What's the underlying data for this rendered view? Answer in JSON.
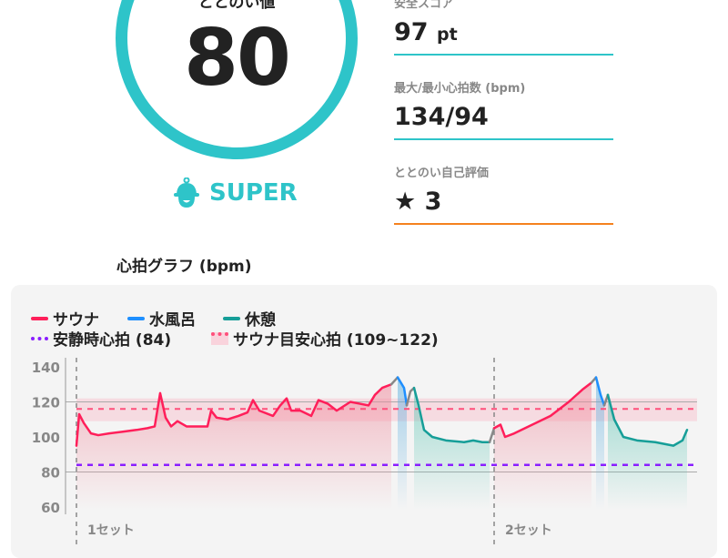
{
  "summary": {
    "score_label": "ととのい値",
    "score": "80",
    "rank": "SUPER",
    "rank_icon": "sauna-hat-icon",
    "accent_color": "#2ec4c9"
  },
  "stats": [
    {
      "label": "安全スコア",
      "value": "97",
      "unit": "pt",
      "line_color": "#2ec4c9"
    },
    {
      "label": "最大/最小心拍数 (bpm)",
      "value": "134/94",
      "unit": "",
      "line_color": "#2ec4c9"
    },
    {
      "label": "ととのい自己評価",
      "value": "3",
      "icon": "star-icon",
      "line_color": "#f5821f"
    }
  ],
  "graph": {
    "title": "心拍グラフ (bpm)"
  },
  "chart_data": {
    "type": "line",
    "title": "心拍グラフ (bpm)",
    "ylim": [
      60,
      140
    ],
    "yticks": [
      "140",
      "120",
      "100",
      "80",
      "60"
    ],
    "grid": true,
    "legend_position": "top-left",
    "legend": [
      {
        "label": "サウナ",
        "color": "#ff1f5a",
        "style": "solid"
      },
      {
        "label": "水風呂",
        "color": "#1e8fff",
        "style": "solid"
      },
      {
        "label": "休憩",
        "color": "#169e98",
        "style": "solid"
      },
      {
        "label": "安静時心拍 (84)",
        "color": "#8a1fff",
        "style": "dotted"
      },
      {
        "label": "サウナ目安心拍 (109~122)",
        "color": "#ff4f7b",
        "style": "dotted-band"
      }
    ],
    "resting_hr": 84,
    "target_band": [
      109,
      122
    ],
    "target_line": 116,
    "set_markers": [
      {
        "t": 0,
        "label": "1セット"
      },
      {
        "t": 459,
        "label": "2セット"
      }
    ],
    "segments": [
      {
        "phase": "sauna",
        "points": [
          [
            0,
            95
          ],
          [
            3,
            113
          ],
          [
            8,
            108
          ],
          [
            16,
            102
          ],
          [
            24,
            101
          ],
          [
            36,
            102
          ],
          [
            51,
            103
          ],
          [
            66,
            104
          ],
          [
            78,
            105
          ],
          [
            86,
            106
          ],
          [
            92,
            125
          ],
          [
            98,
            111
          ],
          [
            104,
            106
          ],
          [
            111,
            109
          ],
          [
            121,
            106
          ],
          [
            136,
            106
          ],
          [
            144,
            106
          ],
          [
            148,
            115
          ],
          [
            154,
            111
          ],
          [
            166,
            110
          ],
          [
            178,
            112
          ],
          [
            188,
            114
          ],
          [
            194,
            121
          ],
          [
            201,
            115
          ],
          [
            216,
            112
          ],
          [
            224,
            118
          ],
          [
            231,
            122
          ],
          [
            236,
            115
          ],
          [
            246,
            115
          ],
          [
            258,
            112
          ],
          [
            266,
            121
          ],
          [
            276,
            119
          ],
          [
            286,
            115
          ],
          [
            301,
            120
          ],
          [
            311,
            119
          ],
          [
            321,
            118
          ],
          [
            328,
            124
          ],
          [
            336,
            128
          ],
          [
            346,
            130
          ]
        ]
      },
      {
        "phase": "transition",
        "points": [
          [
            346,
            130
          ],
          [
            353,
            134
          ]
        ]
      },
      {
        "phase": "water",
        "points": [
          [
            353,
            134
          ],
          [
            360,
            128
          ],
          [
            363,
            118
          ]
        ]
      },
      {
        "phase": "transition",
        "points": [
          [
            363,
            118
          ],
          [
            367,
            126
          ],
          [
            371,
            128
          ]
        ]
      },
      {
        "phase": "rest",
        "points": [
          [
            371,
            128
          ],
          [
            376,
            118
          ],
          [
            382,
            104
          ],
          [
            391,
            100
          ],
          [
            406,
            98
          ],
          [
            426,
            97
          ],
          [
            436,
            98
          ],
          [
            446,
            97
          ],
          [
            454,
            97
          ]
        ]
      },
      {
        "phase": "transition",
        "points": [
          [
            454,
            97
          ],
          [
            459,
            105
          ]
        ]
      },
      {
        "phase": "sauna",
        "points": [
          [
            459,
            105
          ],
          [
            466,
            107
          ],
          [
            471,
            100
          ],
          [
            481,
            102
          ],
          [
            501,
            107
          ],
          [
            521,
            112
          ],
          [
            541,
            120
          ],
          [
            556,
            127
          ],
          [
            566,
            131
          ]
        ]
      },
      {
        "phase": "transition",
        "points": [
          [
            566,
            131
          ],
          [
            571,
            134
          ]
        ]
      },
      {
        "phase": "water",
        "points": [
          [
            571,
            134
          ],
          [
            576,
            124
          ],
          [
            580,
            118
          ]
        ]
      },
      {
        "phase": "transition",
        "points": [
          [
            580,
            118
          ],
          [
            584,
            124
          ]
        ]
      },
      {
        "phase": "rest",
        "points": [
          [
            584,
            124
          ],
          [
            591,
            110
          ],
          [
            601,
            100
          ],
          [
            616,
            98
          ],
          [
            636,
            97
          ],
          [
            656,
            95
          ],
          [
            666,
            98
          ],
          [
            671,
            104
          ]
        ]
      }
    ],
    "phase_colors": {
      "sauna": "#ff1f5a",
      "water": "#1e8fff",
      "rest": "#169e98",
      "transition": "#888888"
    }
  }
}
